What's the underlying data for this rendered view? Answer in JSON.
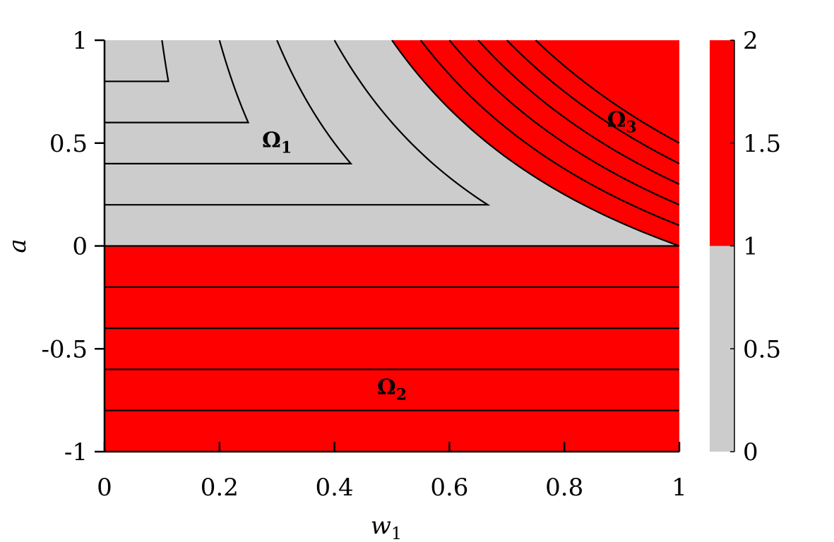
{
  "chart_data": {
    "type": "heatmap",
    "title": "",
    "xlabel": "w",
    "xlabel_sub": "1",
    "ylabel": "a",
    "xlim": [
      0,
      1
    ],
    "ylim": [
      -1,
      1
    ],
    "x_ticks": [
      0,
      0.2,
      0.4,
      0.6,
      0.8,
      1
    ],
    "x_tick_labels": [
      "0",
      "0.2",
      "0.4",
      "0.6",
      "0.8",
      "1"
    ],
    "y_ticks": [
      1,
      0.5,
      0,
      -0.5,
      -1
    ],
    "y_tick_labels": [
      "1",
      "0.5",
      "0",
      "-0.5",
      "-1"
    ],
    "colorbar": {
      "range": [
        0,
        2
      ],
      "ticks": [
        2,
        1.5,
        1,
        0.5,
        0
      ],
      "tick_labels": [
        "2",
        "1.5",
        "1",
        "0.5",
        "0"
      ],
      "bands": [
        {
          "from": 0,
          "to": 1,
          "color": "#cccccc"
        },
        {
          "from": 1,
          "to": 2,
          "color": "#ff0000"
        }
      ]
    },
    "regions": [
      {
        "name": "Ω",
        "sub": "1",
        "value": 0,
        "color": "#cccccc",
        "label_pos": [
          0.3,
          0.48
        ]
      },
      {
        "name": "Ω",
        "sub": "2",
        "value": 2,
        "color": "#ff0000",
        "label_pos": [
          0.5,
          -0.72
        ]
      },
      {
        "name": "Ω",
        "sub": "3",
        "value": 2,
        "color": "#ff0000",
        "label_pos": [
          0.9,
          0.58
        ]
      }
    ],
    "boundary_curve": "a = 1/w1 - 1 (0.5 ≤ w1 ≤ 1)",
    "contour_levels_omega1": [
      0.2,
      0.4,
      0.6,
      0.8
    ],
    "contour_levels_omega2": [
      -0.2,
      -0.4,
      -0.6,
      -0.8
    ],
    "contour_levels_omega3": [
      0.5,
      0.7,
      0.9,
      1.1,
      1.3
    ],
    "grid": false,
    "line_color": "#000000"
  }
}
